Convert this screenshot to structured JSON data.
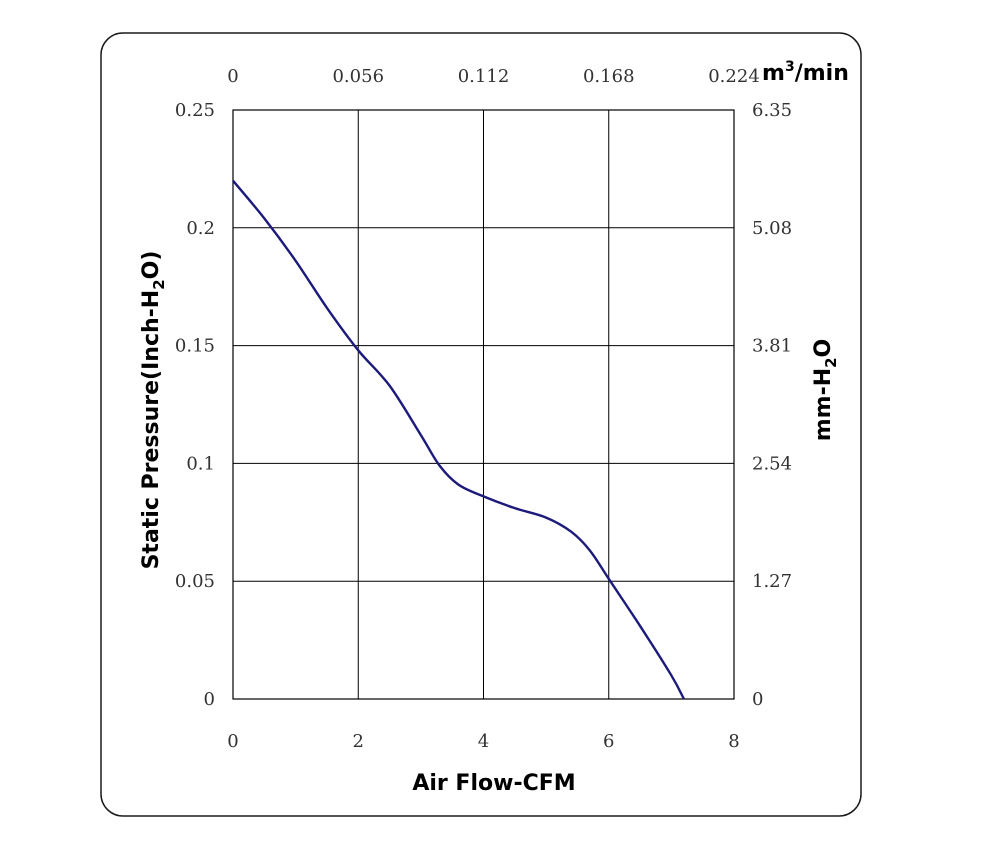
{
  "chart_data": {
    "type": "line",
    "xlabel": "Air Flow-CFM",
    "ylabel": {
      "base": "Static Pressure(Inch-H",
      "sub": "2",
      "tail": "O)"
    },
    "y2label": {
      "base": "mm-H",
      "sub": "2",
      "tail": "O"
    },
    "x2unit": {
      "base": "m",
      "sup": "3",
      "tail": "/min"
    },
    "xlim": [
      0,
      8
    ],
    "ylim": [
      0,
      0.25
    ],
    "x_ticks": [
      "0",
      "2",
      "4",
      "6",
      "8"
    ],
    "y_ticks": [
      "0",
      "0.05",
      "0.1",
      "0.15",
      "0.2",
      "0.25"
    ],
    "x2_ticks": [
      "0",
      "0.056",
      "0.112",
      "0.168",
      "0.224"
    ],
    "y2_ticks": [
      "0",
      "1.27",
      "2.54",
      "3.81",
      "5.08",
      "6.35"
    ],
    "grid": true,
    "series": [
      {
        "color": "#1c1a7a",
        "x": [
          0,
          0.5,
          1.0,
          1.5,
          2.0,
          2.5,
          3.0,
          3.3,
          3.6,
          4.0,
          4.5,
          5.0,
          5.4,
          5.7,
          6.0,
          6.5,
          7.0,
          7.2
        ],
        "y": [
          0.22,
          0.204,
          0.186,
          0.166,
          0.148,
          0.133,
          0.112,
          0.099,
          0.091,
          0.086,
          0.081,
          0.077,
          0.071,
          0.063,
          0.051,
          0.031,
          0.01,
          0.0
        ]
      }
    ]
  }
}
